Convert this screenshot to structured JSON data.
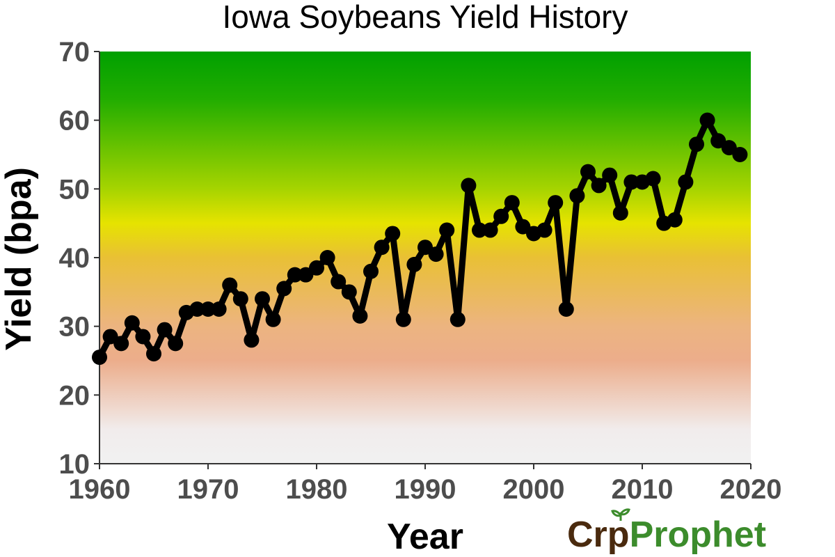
{
  "chart_data": {
    "type": "line",
    "title": "Iowa Soybeans Yield History",
    "xlabel": "Year",
    "ylabel": "Yield (bpa)",
    "xlim": [
      1960,
      2020
    ],
    "ylim": [
      10,
      70
    ],
    "xticks": [
      "1960",
      "1970",
      "1980",
      "1990",
      "2000",
      "2010",
      "2020"
    ],
    "yticks": [
      "10",
      "20",
      "30",
      "40",
      "50",
      "60",
      "70"
    ],
    "grid": false,
    "background_gradient": [
      {
        "value": 70,
        "color": "#00a000"
      },
      {
        "value": 63,
        "color": "#22ad00"
      },
      {
        "value": 50,
        "color": "#a6d400"
      },
      {
        "value": 45,
        "color": "#e6e300"
      },
      {
        "value": 40,
        "color": "#e9c035"
      },
      {
        "value": 30,
        "color": "#ecb480"
      },
      {
        "value": 25,
        "color": "#ecad8b"
      },
      {
        "value": 15,
        "color": "#f1ecec"
      },
      {
        "value": 10,
        "color": "#f1f1f1"
      }
    ],
    "series": [
      {
        "color": "#000000",
        "x": [
          1960,
          1961,
          1962,
          1963,
          1964,
          1965,
          1966,
          1967,
          1968,
          1969,
          1970,
          1971,
          1972,
          1973,
          1974,
          1975,
          1976,
          1977,
          1978,
          1979,
          1980,
          1981,
          1982,
          1983,
          1984,
          1985,
          1986,
          1987,
          1988,
          1989,
          1990,
          1991,
          1992,
          1993,
          1994,
          1995,
          1996,
          1997,
          1998,
          1999,
          2000,
          2001,
          2002,
          2003,
          2004,
          2005,
          2006,
          2007,
          2008,
          2009,
          2010,
          2011,
          2012,
          2013,
          2014,
          2015,
          2016,
          2017,
          2018,
          2019
        ],
        "y": [
          25.5,
          28.5,
          27.5,
          30.5,
          28.5,
          26,
          29.5,
          27.5,
          32,
          32.5,
          32.5,
          32.5,
          36,
          34,
          28,
          34,
          31,
          35.5,
          37.5,
          37.5,
          38.5,
          40,
          36.5,
          35,
          31.5,
          38,
          41.5,
          43.5,
          31,
          39,
          41.5,
          40.5,
          44,
          31,
          50.5,
          44,
          44,
          46,
          48,
          44.5,
          43.5,
          44,
          48,
          32.5,
          49,
          52.5,
          50.5,
          52,
          46.5,
          51,
          51,
          51.5,
          45,
          45.5,
          51,
          56.5,
          60,
          57,
          56,
          55
        ]
      }
    ]
  },
  "brand": {
    "part1": "Cr",
    "part2": "p",
    "part3": "Prophet",
    "color_dark": "#4a2a0e",
    "color_green": "#3c8c2c"
  }
}
